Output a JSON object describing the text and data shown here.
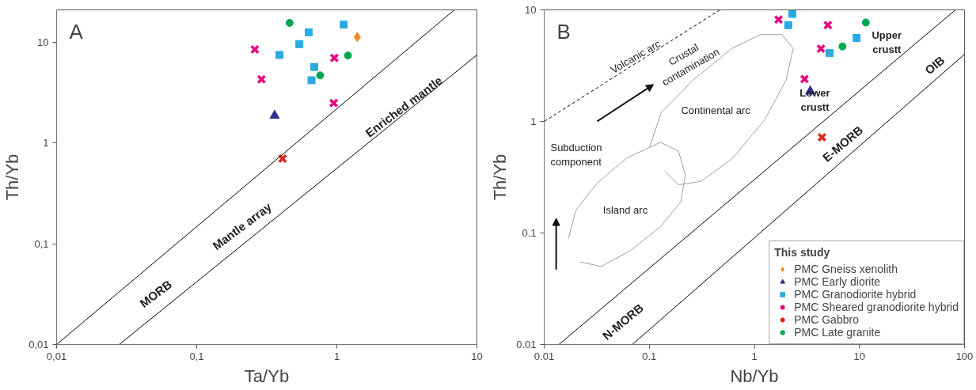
{
  "chart_data": [
    {
      "type": "scatter",
      "title": "A",
      "xlabel": "Ta/Yb",
      "ylabel": "Th/Yb",
      "log": "xy",
      "grid": false,
      "legend": false,
      "xlim": [
        0.01,
        10
      ],
      "ylim": [
        0.01,
        21
      ],
      "xticks": [
        {
          "value": 0.01,
          "label": "0,01"
        },
        {
          "value": 0.1,
          "label": "0,1"
        },
        1,
        10
      ],
      "yticks": [
        {
          "value": 0.01,
          "label": "0,01"
        },
        {
          "value": 0.1,
          "label": "0,1"
        },
        1,
        10
      ],
      "annotations": [
        "MORB",
        "Mantle array",
        "Enriched mantle"
      ],
      "series": [
        {
          "marker": "diamond",
          "color": "#f28c28",
          "x": [
            1.4
          ],
          "values": [
            11.3
          ]
        },
        {
          "marker": "triangle",
          "color": "#2e3192",
          "x": [
            0.36
          ],
          "values": [
            1.87
          ]
        },
        {
          "marker": "square",
          "color": "#29abe2",
          "x": [
            0.39,
            0.54,
            0.63,
            1.12,
            0.69,
            0.66
          ],
          "values": [
            7.5,
            9.6,
            12.6,
            15,
            5.7,
            4.2
          ]
        },
        {
          "marker": "cross",
          "color": "#e6007e",
          "x": [
            0.26,
            0.29,
            0.96,
            0.95
          ],
          "values": [
            8.5,
            4.3,
            7,
            2.5
          ]
        },
        {
          "marker": "cross",
          "color": "#e2231a",
          "x": [
            0.41
          ],
          "values": [
            0.7
          ]
        },
        {
          "marker": "circle",
          "color": "#00a651",
          "x": [
            0.46,
            1.2,
            0.76
          ],
          "values": [
            15.6,
            7.4,
            4.7
          ]
        },
        {
          "type": "line",
          "line_style": "solid",
          "color": "#000000",
          "x": [
            0.01,
            6.9
          ],
          "values": [
            0.01,
            21
          ]
        },
        {
          "type": "line",
          "line_style": "solid",
          "color": "#000000",
          "x": [
            0.028,
            10
          ],
          "values": [
            0.01,
            7.5
          ]
        }
      ]
    },
    {
      "type": "scatter",
      "title": "B",
      "xlabel": "Nb/Yb",
      "ylabel": "Th/Yb",
      "log": "xy",
      "grid": false,
      "legend": "bottom right",
      "legend_title": "This study",
      "xlim": [
        0.01,
        100
      ],
      "ylim": [
        0.01,
        10
      ],
      "xticks": [
        0.01,
        0.1,
        1,
        10,
        100
      ],
      "yticks": [
        0.01,
        0.1,
        1,
        10
      ],
      "annotations": [
        "Volcanic arc",
        "Crustal\ncontamination",
        "Continental arc",
        "Subduction\ncomponent",
        "Island arc",
        "Lower\ncrustt",
        "Upper\ncrustt",
        "OIB",
        "E-MORB",
        "N-MORB"
      ],
      "series": [
        {
          "name": "PMC Gneiss xenolith",
          "marker": "diamond",
          "color": "#f28c28"
        },
        {
          "name": "PMC Early diorite",
          "marker": "triangle",
          "color": "#2e3192",
          "x": [
            3.4
          ],
          "values": [
            1.86
          ]
        },
        {
          "name": "PMC Granodiorite hybrid",
          "marker": "square",
          "color": "#29abe2",
          "x": [
            2.3,
            2.1,
            5.2,
            9.4
          ],
          "values": [
            9.2,
            7.3,
            4.1,
            5.6
          ]
        },
        {
          "name": "PMC Sheared granodiorite hybrid",
          "marker": "cross",
          "color": "#e6007e",
          "x": [
            1.7,
            5.0,
            4.3,
            3.0
          ],
          "values": [
            8.2,
            7.3,
            4.5,
            2.4
          ]
        },
        {
          "name": "PMC Gabbro",
          "marker": "cross",
          "color": "#e2231a",
          "x": [
            4.4
          ],
          "values": [
            0.72
          ]
        },
        {
          "name": "PMC Late granite",
          "marker": "circle",
          "color": "#00a651",
          "x": [
            11.5,
            6.9
          ],
          "values": [
            7.7,
            4.7
          ]
        },
        {
          "type": "line",
          "line_style": "dashed",
          "color": "#000000",
          "x": [
            0.01,
            0.47
          ],
          "values": [
            1,
            10
          ]
        },
        {
          "type": "line",
          "line_style": "solid",
          "color": "#000000",
          "x": [
            0.0138,
            82
          ],
          "values": [
            0.01,
            10
          ]
        },
        {
          "type": "line",
          "line_style": "solid",
          "color": "#000000",
          "x": [
            0.069,
            100
          ],
          "values": [
            0.01,
            4.0
          ]
        },
        {
          "type": "line",
          "line_style": "solid",
          "color": "#a0a0a0",
          "x": [
            0.1,
            0.13,
            0.26,
            0.61,
            1.14,
            1.83,
            2.34,
            2.0,
            1.25,
            0.61,
            0.31,
            0.19,
            0.14
          ],
          "values": [
            0.58,
            1.2,
            2.34,
            4.5,
            6.0,
            6.0,
            4.5,
            2.34,
            1.03,
            0.46,
            0.29,
            0.27,
            0.36
          ]
        },
        {
          "type": "line",
          "line_style": "solid",
          "color": "#a0a0a0",
          "x": [
            0.017,
            0.02,
            0.032,
            0.061,
            0.128,
            0.19,
            0.22,
            0.2,
            0.128,
            0.067,
            0.035,
            0.022
          ],
          "values": [
            0.089,
            0.16,
            0.28,
            0.47,
            0.65,
            0.54,
            0.33,
            0.19,
            0.114,
            0.07,
            0.05,
            0.055
          ]
        }
      ]
    }
  ]
}
